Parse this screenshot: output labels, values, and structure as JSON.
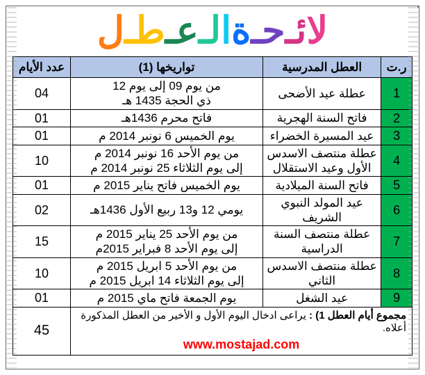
{
  "title_chars": [
    {
      "t": "لا",
      "c": "#e83e8c"
    },
    {
      "t": "ئـ",
      "c": "#d63384"
    },
    {
      "t": "حـ",
      "c": "#6f42c1"
    },
    {
      "t": "ة ",
      "c": "#0d6efd"
    },
    {
      "t": "ا",
      "c": "#0dcaf0"
    },
    {
      "t": "لـ",
      "c": "#20c997"
    },
    {
      "t": "عـ",
      "c": "#198754"
    },
    {
      "t": "طـ",
      "c": "#ffc107"
    },
    {
      "t": "ل",
      "c": "#fd7e14"
    }
  ],
  "headers": {
    "num": "ر.ت",
    "holiday": "العطل المدرسية",
    "dates": "تواريخها (1)",
    "days": "عدد الأيام"
  },
  "rows": [
    {
      "n": "1",
      "holiday": "عطلة عيد الأضحى",
      "dates": "من يوم 09 إلى يوم 12\nذي الحجة 1435 هـ",
      "days": "04"
    },
    {
      "n": "2",
      "holiday": "فاتح السنة الهجرية",
      "dates": "فاتح محرم 1436هـ",
      "days": "01"
    },
    {
      "n": "3",
      "holiday": "عيد المسيرة الخضراء",
      "dates": "يوم الخميس 6 نونبر 2014 م",
      "days": "01"
    },
    {
      "n": "4",
      "holiday": "عطلة منتصف الاسدس الأول وعيد الاستقلال",
      "dates": "من يوم الأحد 16 نونبر 2014 م\nإلى يوم الثلاثاء 25 نونبر 2014 م",
      "days": "10"
    },
    {
      "n": "5",
      "holiday": "فاتح السنة الميلادية",
      "dates": "يوم الخميس فاتح يناير 2015 م",
      "days": "01"
    },
    {
      "n": "6",
      "holiday": "عيد المولد النبوي الشريف",
      "dates": "يومي 12 و13 ربيع الأول 1436هـ",
      "days": "02"
    },
    {
      "n": "7",
      "holiday": "عطلة منتصف السنة الدراسية",
      "dates": "من يوم الأحد 25 يناير 2015 م\nإلى يوم الأحد 8 فبراير 2015م",
      "days": "15"
    },
    {
      "n": "8",
      "holiday": "عطلة منتصف الاسدس الثاني",
      "dates": "من يوم الأحد 5 ابريل 2015 م\nإلى يوم الثلاثاء 14 ابريل 2015 م",
      "days": "10"
    },
    {
      "n": "9",
      "holiday": "عيد الشغل",
      "dates": "يوم الجمعة فاتح ماي 2015 م",
      "days": "01"
    }
  ],
  "footer": {
    "label": "مجموع أيام العطل 1) :",
    "text": "يراعى ادخال اليوم الأول و الأخير من العطل المذكورة أعلاه.",
    "total": "45",
    "url": "www.mostajad.com"
  },
  "colors": {
    "header_bg": "#b3c6e7",
    "num_bg": "#00b050",
    "url": "#ff0000"
  }
}
